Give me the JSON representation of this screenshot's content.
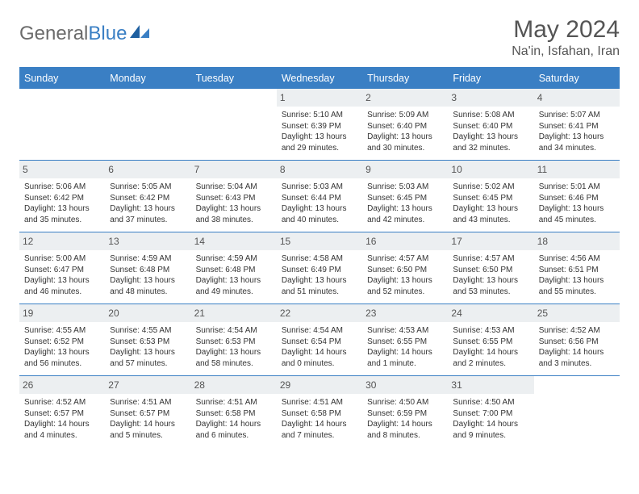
{
  "brand": {
    "part1": "General",
    "part2": "Blue",
    "icon_color": "#1e5fa0",
    "text_color_1": "#6b6b6b",
    "text_color_2": "#3a7fc4"
  },
  "title": "May 2024",
  "location": "Na'in, Isfahan, Iran",
  "colors": {
    "header_bg": "#3a7fc4",
    "header_text": "#ffffff",
    "daynum_bg": "#eceff1",
    "border": "#3a7fc4",
    "text": "#333333"
  },
  "day_headers": [
    "Sunday",
    "Monday",
    "Tuesday",
    "Wednesday",
    "Thursday",
    "Friday",
    "Saturday"
  ],
  "weeks": [
    [
      {
        "n": "",
        "sunrise": "",
        "sunset": "",
        "daylight": ""
      },
      {
        "n": "",
        "sunrise": "",
        "sunset": "",
        "daylight": ""
      },
      {
        "n": "",
        "sunrise": "",
        "sunset": "",
        "daylight": ""
      },
      {
        "n": "1",
        "sunrise": "Sunrise: 5:10 AM",
        "sunset": "Sunset: 6:39 PM",
        "daylight": "Daylight: 13 hours and 29 minutes."
      },
      {
        "n": "2",
        "sunrise": "Sunrise: 5:09 AM",
        "sunset": "Sunset: 6:40 PM",
        "daylight": "Daylight: 13 hours and 30 minutes."
      },
      {
        "n": "3",
        "sunrise": "Sunrise: 5:08 AM",
        "sunset": "Sunset: 6:40 PM",
        "daylight": "Daylight: 13 hours and 32 minutes."
      },
      {
        "n": "4",
        "sunrise": "Sunrise: 5:07 AM",
        "sunset": "Sunset: 6:41 PM",
        "daylight": "Daylight: 13 hours and 34 minutes."
      }
    ],
    [
      {
        "n": "5",
        "sunrise": "Sunrise: 5:06 AM",
        "sunset": "Sunset: 6:42 PM",
        "daylight": "Daylight: 13 hours and 35 minutes."
      },
      {
        "n": "6",
        "sunrise": "Sunrise: 5:05 AM",
        "sunset": "Sunset: 6:42 PM",
        "daylight": "Daylight: 13 hours and 37 minutes."
      },
      {
        "n": "7",
        "sunrise": "Sunrise: 5:04 AM",
        "sunset": "Sunset: 6:43 PM",
        "daylight": "Daylight: 13 hours and 38 minutes."
      },
      {
        "n": "8",
        "sunrise": "Sunrise: 5:03 AM",
        "sunset": "Sunset: 6:44 PM",
        "daylight": "Daylight: 13 hours and 40 minutes."
      },
      {
        "n": "9",
        "sunrise": "Sunrise: 5:03 AM",
        "sunset": "Sunset: 6:45 PM",
        "daylight": "Daylight: 13 hours and 42 minutes."
      },
      {
        "n": "10",
        "sunrise": "Sunrise: 5:02 AM",
        "sunset": "Sunset: 6:45 PM",
        "daylight": "Daylight: 13 hours and 43 minutes."
      },
      {
        "n": "11",
        "sunrise": "Sunrise: 5:01 AM",
        "sunset": "Sunset: 6:46 PM",
        "daylight": "Daylight: 13 hours and 45 minutes."
      }
    ],
    [
      {
        "n": "12",
        "sunrise": "Sunrise: 5:00 AM",
        "sunset": "Sunset: 6:47 PM",
        "daylight": "Daylight: 13 hours and 46 minutes."
      },
      {
        "n": "13",
        "sunrise": "Sunrise: 4:59 AM",
        "sunset": "Sunset: 6:48 PM",
        "daylight": "Daylight: 13 hours and 48 minutes."
      },
      {
        "n": "14",
        "sunrise": "Sunrise: 4:59 AM",
        "sunset": "Sunset: 6:48 PM",
        "daylight": "Daylight: 13 hours and 49 minutes."
      },
      {
        "n": "15",
        "sunrise": "Sunrise: 4:58 AM",
        "sunset": "Sunset: 6:49 PM",
        "daylight": "Daylight: 13 hours and 51 minutes."
      },
      {
        "n": "16",
        "sunrise": "Sunrise: 4:57 AM",
        "sunset": "Sunset: 6:50 PM",
        "daylight": "Daylight: 13 hours and 52 minutes."
      },
      {
        "n": "17",
        "sunrise": "Sunrise: 4:57 AM",
        "sunset": "Sunset: 6:50 PM",
        "daylight": "Daylight: 13 hours and 53 minutes."
      },
      {
        "n": "18",
        "sunrise": "Sunrise: 4:56 AM",
        "sunset": "Sunset: 6:51 PM",
        "daylight": "Daylight: 13 hours and 55 minutes."
      }
    ],
    [
      {
        "n": "19",
        "sunrise": "Sunrise: 4:55 AM",
        "sunset": "Sunset: 6:52 PM",
        "daylight": "Daylight: 13 hours and 56 minutes."
      },
      {
        "n": "20",
        "sunrise": "Sunrise: 4:55 AM",
        "sunset": "Sunset: 6:53 PM",
        "daylight": "Daylight: 13 hours and 57 minutes."
      },
      {
        "n": "21",
        "sunrise": "Sunrise: 4:54 AM",
        "sunset": "Sunset: 6:53 PM",
        "daylight": "Daylight: 13 hours and 58 minutes."
      },
      {
        "n": "22",
        "sunrise": "Sunrise: 4:54 AM",
        "sunset": "Sunset: 6:54 PM",
        "daylight": "Daylight: 14 hours and 0 minutes."
      },
      {
        "n": "23",
        "sunrise": "Sunrise: 4:53 AM",
        "sunset": "Sunset: 6:55 PM",
        "daylight": "Daylight: 14 hours and 1 minute."
      },
      {
        "n": "24",
        "sunrise": "Sunrise: 4:53 AM",
        "sunset": "Sunset: 6:55 PM",
        "daylight": "Daylight: 14 hours and 2 minutes."
      },
      {
        "n": "25",
        "sunrise": "Sunrise: 4:52 AM",
        "sunset": "Sunset: 6:56 PM",
        "daylight": "Daylight: 14 hours and 3 minutes."
      }
    ],
    [
      {
        "n": "26",
        "sunrise": "Sunrise: 4:52 AM",
        "sunset": "Sunset: 6:57 PM",
        "daylight": "Daylight: 14 hours and 4 minutes."
      },
      {
        "n": "27",
        "sunrise": "Sunrise: 4:51 AM",
        "sunset": "Sunset: 6:57 PM",
        "daylight": "Daylight: 14 hours and 5 minutes."
      },
      {
        "n": "28",
        "sunrise": "Sunrise: 4:51 AM",
        "sunset": "Sunset: 6:58 PM",
        "daylight": "Daylight: 14 hours and 6 minutes."
      },
      {
        "n": "29",
        "sunrise": "Sunrise: 4:51 AM",
        "sunset": "Sunset: 6:58 PM",
        "daylight": "Daylight: 14 hours and 7 minutes."
      },
      {
        "n": "30",
        "sunrise": "Sunrise: 4:50 AM",
        "sunset": "Sunset: 6:59 PM",
        "daylight": "Daylight: 14 hours and 8 minutes."
      },
      {
        "n": "31",
        "sunrise": "Sunrise: 4:50 AM",
        "sunset": "Sunset: 7:00 PM",
        "daylight": "Daylight: 14 hours and 9 minutes."
      },
      {
        "n": "",
        "sunrise": "",
        "sunset": "",
        "daylight": ""
      }
    ]
  ]
}
